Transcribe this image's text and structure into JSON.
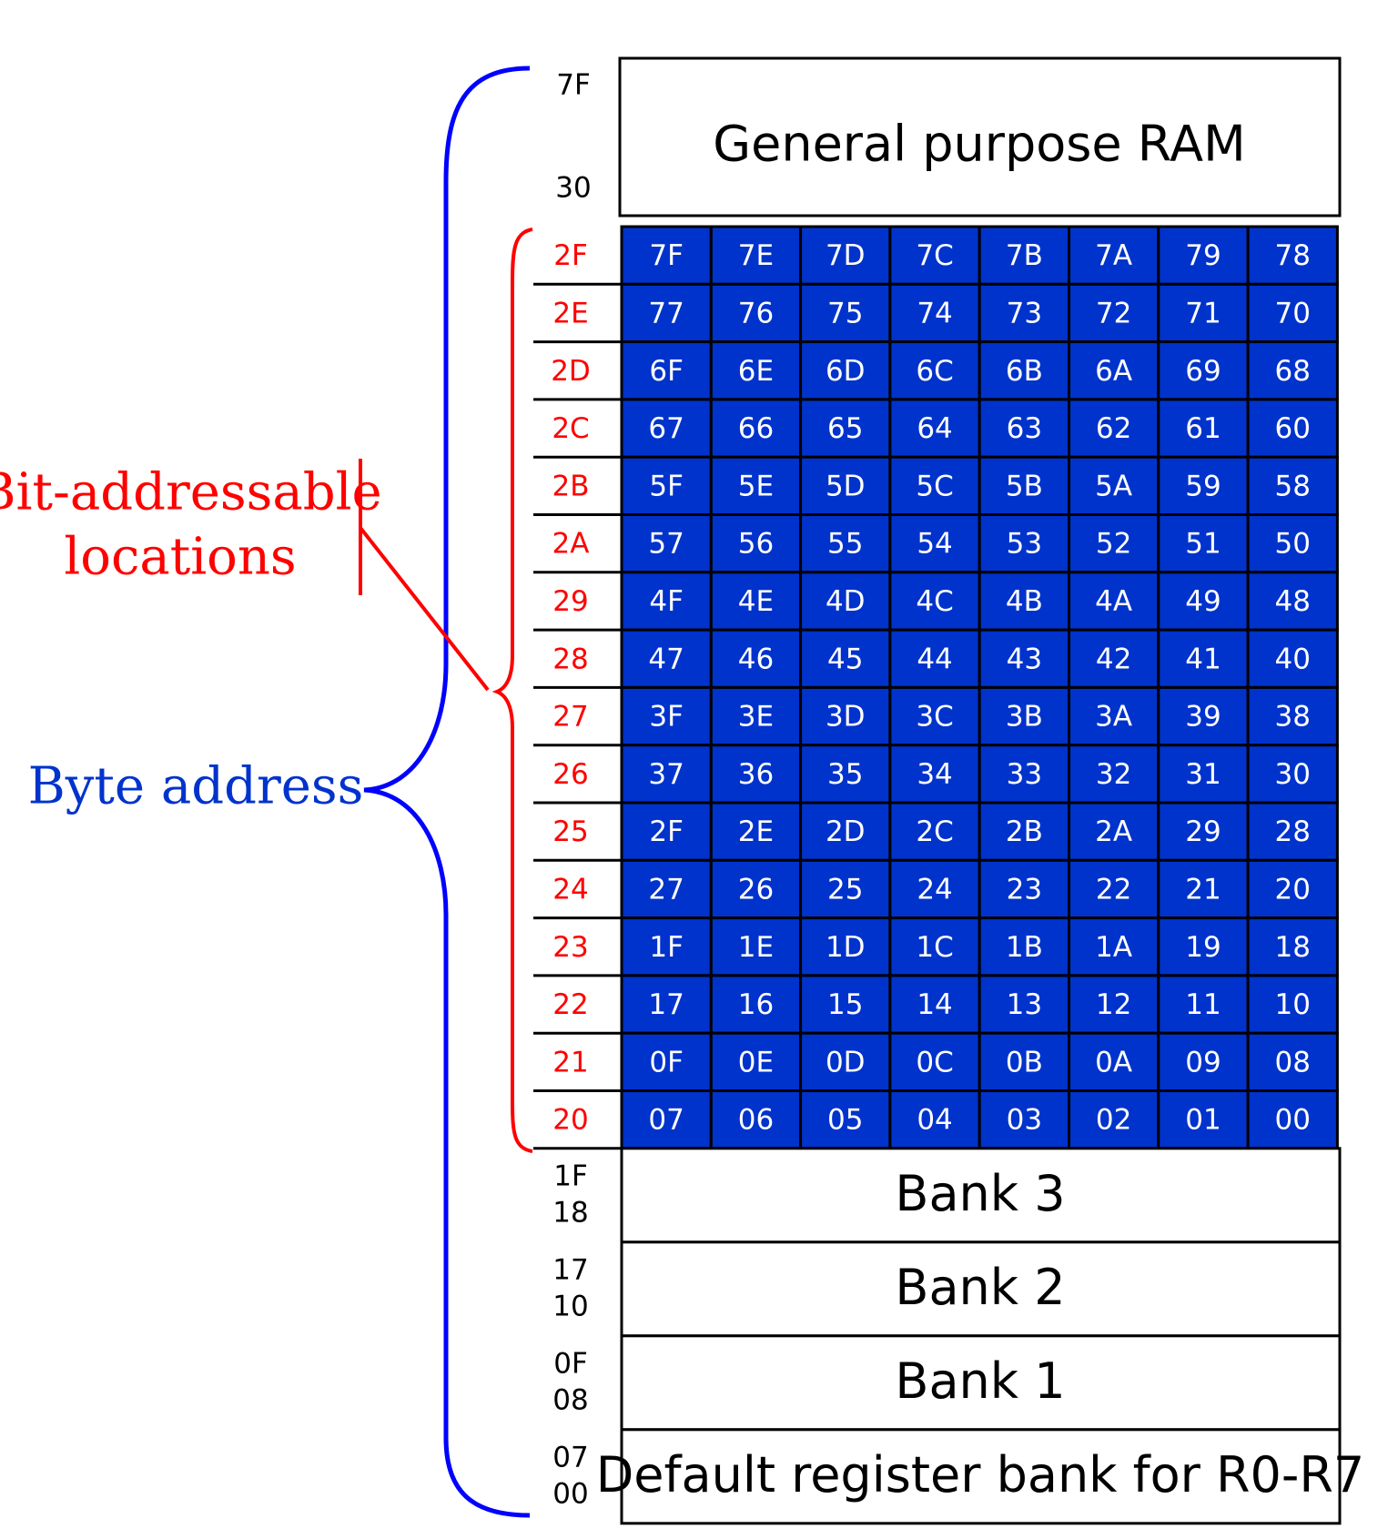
{
  "colors": {
    "bit_area_fill": "#0033cc",
    "bit_text": "#ffffff",
    "bit_address": "#ff0000",
    "byte_brace": "#0000ff",
    "byte_label": "#0033cc",
    "line": "#000000"
  },
  "general_ram": {
    "label": "General purpose RAM",
    "addr_top": "7F",
    "addr_bottom": "30"
  },
  "bit_addressable": {
    "rows": [
      {
        "addr": "2F",
        "bits": [
          "7F",
          "7E",
          "7D",
          "7C",
          "7B",
          "7A",
          "79",
          "78"
        ]
      },
      {
        "addr": "2E",
        "bits": [
          "77",
          "76",
          "75",
          "74",
          "73",
          "72",
          "71",
          "70"
        ]
      },
      {
        "addr": "2D",
        "bits": [
          "6F",
          "6E",
          "6D",
          "6C",
          "6B",
          "6A",
          "69",
          "68"
        ]
      },
      {
        "addr": "2C",
        "bits": [
          "67",
          "66",
          "65",
          "64",
          "63",
          "62",
          "61",
          "60"
        ]
      },
      {
        "addr": "2B",
        "bits": [
          "5F",
          "5E",
          "5D",
          "5C",
          "5B",
          "5A",
          "59",
          "58"
        ]
      },
      {
        "addr": "2A",
        "bits": [
          "57",
          "56",
          "55",
          "54",
          "53",
          "52",
          "51",
          "50"
        ]
      },
      {
        "addr": "29",
        "bits": [
          "4F",
          "4E",
          "4D",
          "4C",
          "4B",
          "4A",
          "49",
          "48"
        ]
      },
      {
        "addr": "28",
        "bits": [
          "47",
          "46",
          "45",
          "44",
          "43",
          "42",
          "41",
          "40"
        ]
      },
      {
        "addr": "27",
        "bits": [
          "3F",
          "3E",
          "3D",
          "3C",
          "3B",
          "3A",
          "39",
          "38"
        ]
      },
      {
        "addr": "26",
        "bits": [
          "37",
          "36",
          "35",
          "34",
          "33",
          "32",
          "31",
          "30"
        ]
      },
      {
        "addr": "25",
        "bits": [
          "2F",
          "2E",
          "2D",
          "2C",
          "2B",
          "2A",
          "29",
          "28"
        ]
      },
      {
        "addr": "24",
        "bits": [
          "27",
          "26",
          "25",
          "24",
          "23",
          "22",
          "21",
          "20"
        ]
      },
      {
        "addr": "23",
        "bits": [
          "1F",
          "1E",
          "1D",
          "1C",
          "1B",
          "1A",
          "19",
          "18"
        ]
      },
      {
        "addr": "22",
        "bits": [
          "17",
          "16",
          "15",
          "14",
          "13",
          "12",
          "11",
          "10"
        ]
      },
      {
        "addr": "21",
        "bits": [
          "0F",
          "0E",
          "0D",
          "0C",
          "0B",
          "0A",
          "09",
          "08"
        ]
      },
      {
        "addr": "20",
        "bits": [
          "07",
          "06",
          "05",
          "04",
          "03",
          "02",
          "01",
          "00"
        ]
      }
    ]
  },
  "banks": [
    {
      "label": "Bank 3",
      "addr_top": "1F",
      "addr_bottom": "18"
    },
    {
      "label": "Bank 2",
      "addr_top": "17",
      "addr_bottom": "10"
    },
    {
      "label": "Bank 1",
      "addr_top": "0F",
      "addr_bottom": "08"
    },
    {
      "label": "Default register bank for R0-R7",
      "addr_top": "07",
      "addr_bottom": "00"
    }
  ],
  "annotations": {
    "bit_addressable_line1": "Bit-addressable",
    "bit_addressable_line2": "locations",
    "byte_address": "Byte address"
  }
}
